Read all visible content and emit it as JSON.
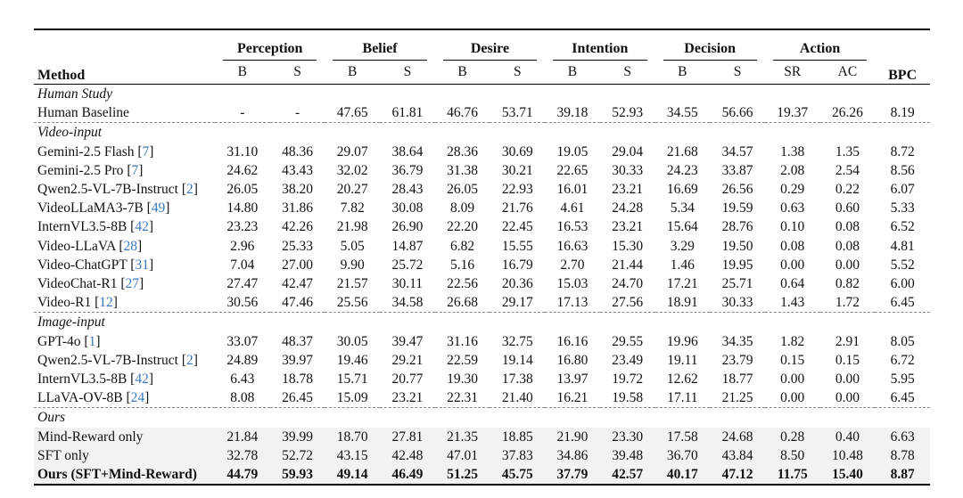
{
  "table": {
    "method_header": "Method",
    "bpc_header": "BPC",
    "groups": [
      {
        "label": "Perception",
        "sub": [
          "B",
          "S"
        ]
      },
      {
        "label": "Belief",
        "sub": [
          "B",
          "S"
        ]
      },
      {
        "label": "Desire",
        "sub": [
          "B",
          "S"
        ]
      },
      {
        "label": "Intention",
        "sub": [
          "B",
          "S"
        ]
      },
      {
        "label": "Decision",
        "sub": [
          "B",
          "S"
        ]
      },
      {
        "label": "Action",
        "sub": [
          "SR",
          "AC"
        ]
      }
    ],
    "sections": [
      {
        "title": "Human Study",
        "dashed_top": false,
        "highlight": false,
        "rows": [
          {
            "method": "Human Baseline",
            "cite": null,
            "bold": false,
            "values": [
              "-",
              "-",
              "47.65",
              "61.81",
              "46.76",
              "53.71",
              "39.18",
              "52.93",
              "34.55",
              "56.66",
              "19.37",
              "26.26",
              "8.19"
            ]
          }
        ]
      },
      {
        "title": "Video-input",
        "dashed_top": true,
        "highlight": false,
        "rows": [
          {
            "method": "Gemini-2.5 Flash",
            "cite": "7",
            "bold": false,
            "values": [
              "31.10",
              "48.36",
              "29.07",
              "38.64",
              "28.36",
              "30.69",
              "19.05",
              "29.04",
              "21.68",
              "34.57",
              "1.38",
              "1.35",
              "8.72"
            ]
          },
          {
            "method": "Gemini-2.5 Pro",
            "cite": "7",
            "bold": false,
            "values": [
              "24.62",
              "43.43",
              "32.02",
              "36.79",
              "31.38",
              "30.21",
              "22.65",
              "30.33",
              "24.23",
              "33.87",
              "2.08",
              "2.54",
              "8.56"
            ]
          },
          {
            "method": "Qwen2.5-VL-7B-Instruct",
            "cite": "2",
            "bold": false,
            "values": [
              "26.05",
              "38.20",
              "20.27",
              "28.43",
              "26.05",
              "22.93",
              "16.01",
              "23.21",
              "16.69",
              "26.56",
              "0.29",
              "0.22",
              "6.07"
            ]
          },
          {
            "method": "VideoLLaMA3-7B",
            "cite": "49",
            "bold": false,
            "values": [
              "14.80",
              "31.86",
              "7.82",
              "30.08",
              "8.09",
              "21.76",
              "4.61",
              "24.28",
              "5.34",
              "19.59",
              "0.63",
              "0.60",
              "5.33"
            ]
          },
          {
            "method": "InternVL3.5-8B",
            "cite": "42",
            "bold": false,
            "values": [
              "23.23",
              "42.26",
              "21.98",
              "26.90",
              "22.20",
              "22.45",
              "16.53",
              "23.21",
              "15.64",
              "28.76",
              "0.10",
              "0.08",
              "6.52"
            ]
          },
          {
            "method": "Video-LLaVA",
            "cite": "28",
            "bold": false,
            "values": [
              "2.96",
              "25.33",
              "5.05",
              "14.87",
              "6.82",
              "15.55",
              "16.63",
              "15.30",
              "3.29",
              "19.50",
              "0.08",
              "0.08",
              "4.81"
            ]
          },
          {
            "method": "Video-ChatGPT",
            "cite": "31",
            "bold": false,
            "values": [
              "7.04",
              "27.00",
              "9.90",
              "25.72",
              "5.16",
              "16.79",
              "2.70",
              "21.44",
              "1.46",
              "19.95",
              "0.00",
              "0.00",
              "5.52"
            ]
          },
          {
            "method": "VideoChat-R1",
            "cite": "27",
            "bold": false,
            "values": [
              "27.47",
              "42.47",
              "21.57",
              "30.11",
              "22.56",
              "20.36",
              "15.03",
              "24.70",
              "17.21",
              "25.71",
              "0.64",
              "0.82",
              "6.00"
            ]
          },
          {
            "method": "Video-R1",
            "cite": "12",
            "bold": false,
            "values": [
              "30.56",
              "47.46",
              "25.56",
              "34.58",
              "26.68",
              "29.17",
              "17.13",
              "27.56",
              "18.91",
              "30.33",
              "1.43",
              "1.72",
              "6.45"
            ]
          }
        ]
      },
      {
        "title": "Image-input",
        "dashed_top": true,
        "highlight": false,
        "rows": [
          {
            "method": "GPT-4o",
            "cite": "1",
            "bold": false,
            "values": [
              "33.07",
              "48.37",
              "30.05",
              "39.47",
              "31.16",
              "32.75",
              "16.16",
              "29.55",
              "19.96",
              "34.35",
              "1.82",
              "2.91",
              "8.05"
            ]
          },
          {
            "method": "Qwen2.5-VL-7B-Instruct",
            "cite": "2",
            "bold": false,
            "values": [
              "24.89",
              "39.97",
              "19.46",
              "29.21",
              "22.59",
              "19.14",
              "16.80",
              "23.49",
              "19.11",
              "23.79",
              "0.15",
              "0.15",
              "6.72"
            ]
          },
          {
            "method": "InternVL3.5-8B",
            "cite": "42",
            "bold": false,
            "values": [
              "6.43",
              "18.78",
              "15.71",
              "20.77",
              "19.30",
              "17.38",
              "13.97",
              "19.72",
              "12.62",
              "18.77",
              "0.00",
              "0.00",
              "5.95"
            ]
          },
          {
            "method": "LLaVA-OV-8B",
            "cite": "24",
            "bold": false,
            "values": [
              "8.08",
              "26.45",
              "15.09",
              "23.21",
              "22.31",
              "21.40",
              "16.21",
              "19.58",
              "17.11",
              "21.25",
              "0.00",
              "0.00",
              "6.45"
            ]
          }
        ]
      },
      {
        "title": "Ours",
        "dashed_top": true,
        "highlight": true,
        "rows": [
          {
            "method": "Mind-Reward only",
            "cite": null,
            "bold": false,
            "values": [
              "21.84",
              "39.99",
              "18.70",
              "27.81",
              "21.35",
              "18.85",
              "21.90",
              "23.30",
              "17.58",
              "24.68",
              "0.28",
              "0.40",
              "6.63"
            ]
          },
          {
            "method": "SFT only",
            "cite": null,
            "bold": false,
            "values": [
              "32.78",
              "52.72",
              "43.15",
              "42.48",
              "47.01",
              "37.83",
              "34.86",
              "39.48",
              "36.70",
              "43.84",
              "8.50",
              "10.48",
              "8.78"
            ]
          },
          {
            "method": "Ours (SFT+Mind-Reward)",
            "cite": null,
            "bold": true,
            "values": [
              "44.79",
              "59.93",
              "49.14",
              "46.49",
              "51.25",
              "45.75",
              "37.79",
              "42.57",
              "40.17",
              "47.12",
              "11.75",
              "15.40",
              "8.87"
            ]
          }
        ]
      }
    ],
    "colors": {
      "citation_blue": "#3b77bd",
      "highlight_bg": "#f2f2f1",
      "rule_black": "#000000",
      "dashed_gray": "#8a8a8a"
    }
  }
}
